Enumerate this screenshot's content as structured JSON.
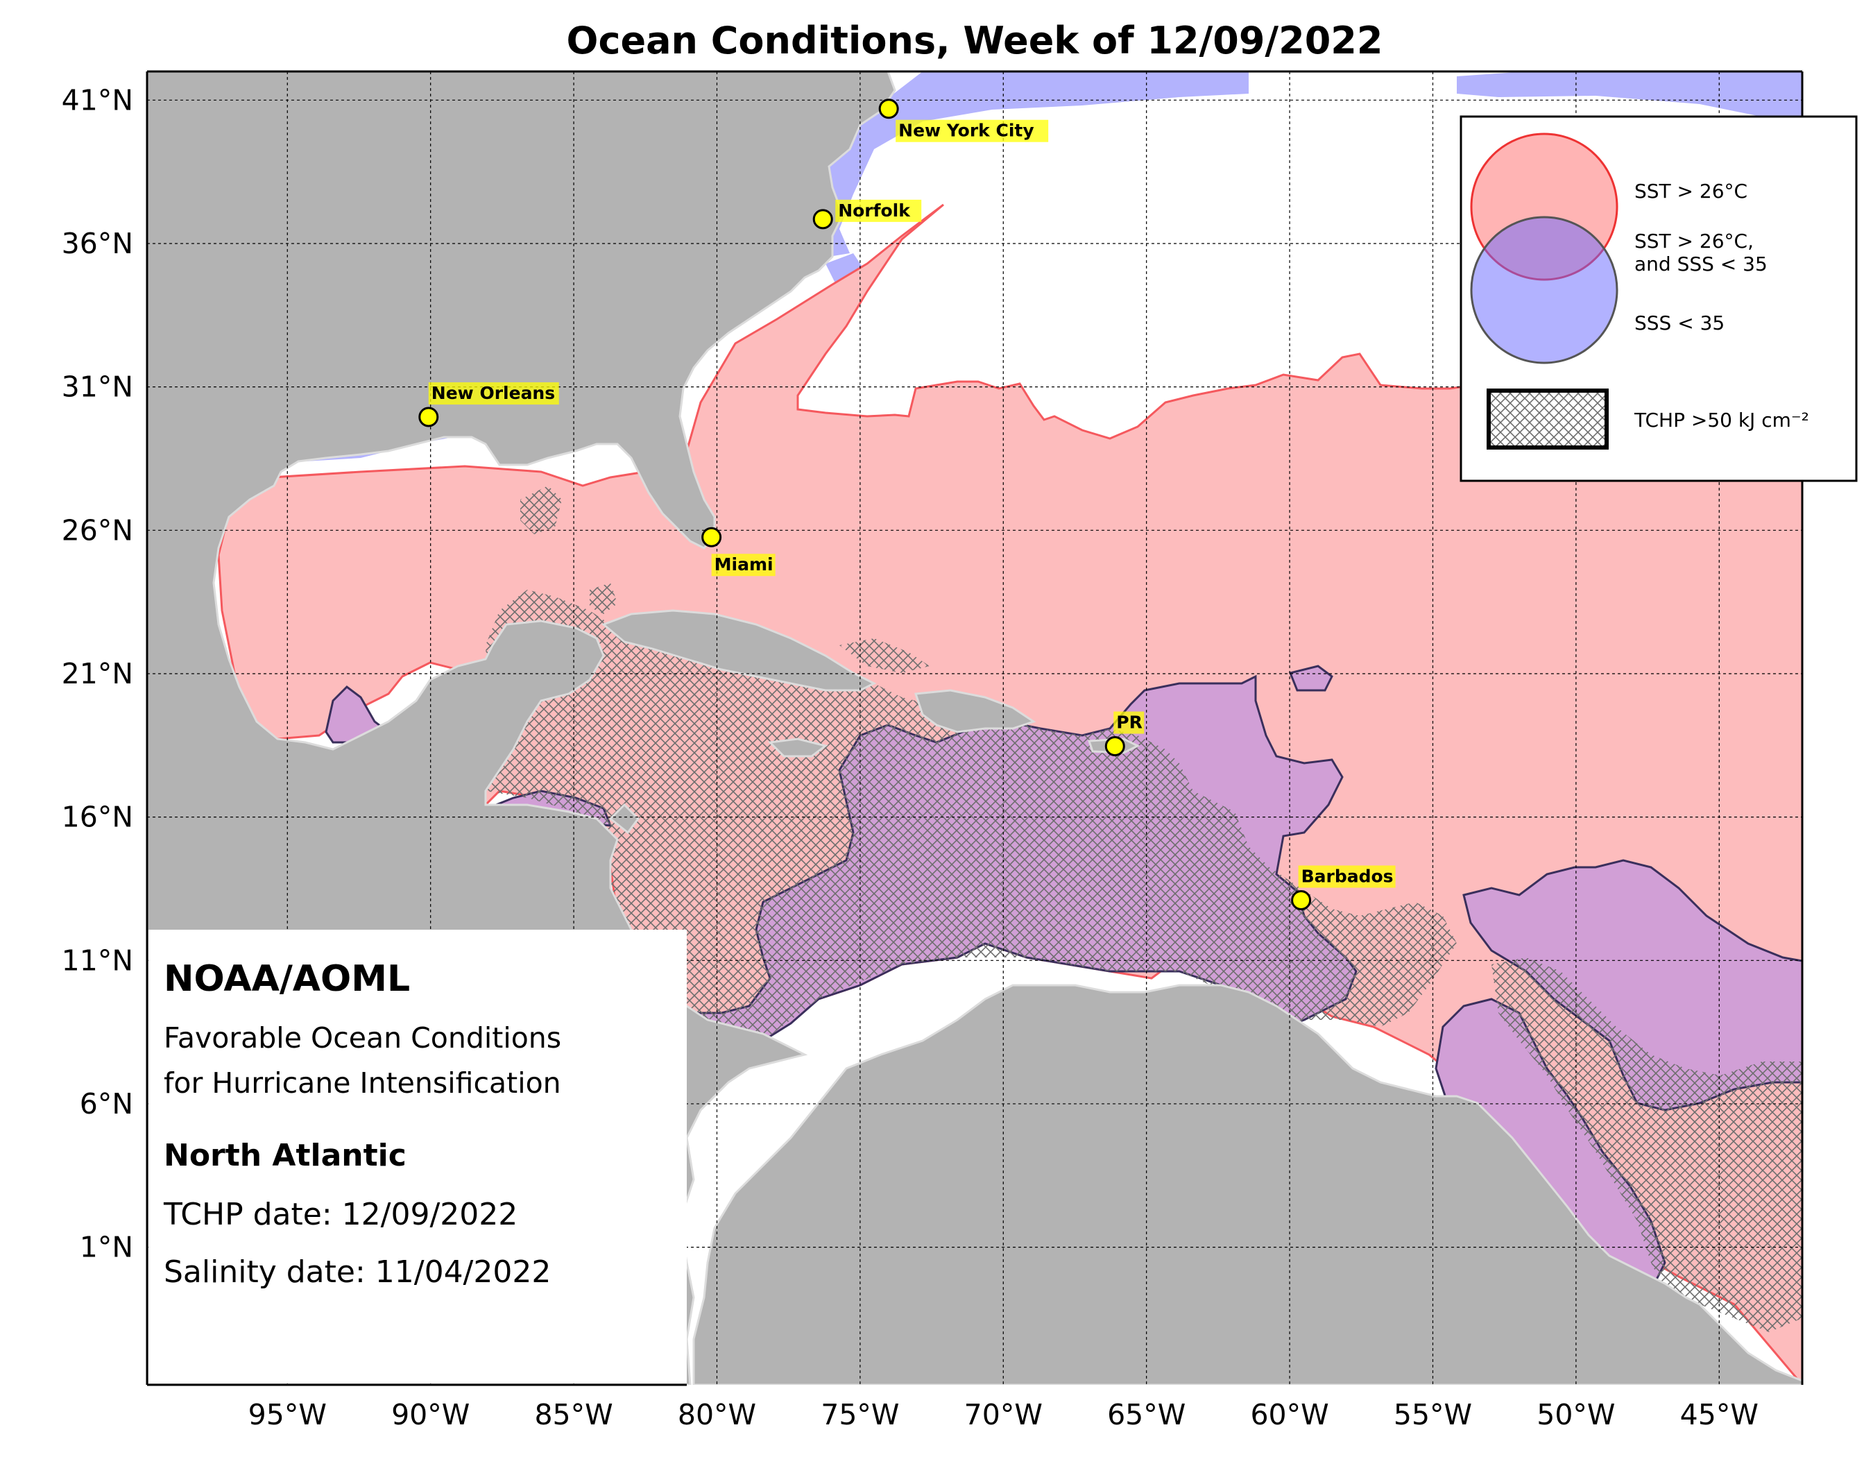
{
  "title": "Ocean Conditions, Week of 12/09/2022",
  "axes": {
    "lat_labels": [
      "41°N",
      "36°N",
      "31°N",
      "26°N",
      "21°N",
      "16°N",
      "11°N",
      "6°N",
      "1°N"
    ],
    "lon_labels": [
      "95°W",
      "90°W",
      "85°W",
      "80°W",
      "75°W",
      "70°W",
      "65°W",
      "60°W",
      "55°W",
      "50°W",
      "45°W"
    ]
  },
  "cities": [
    {
      "name": "New York City",
      "lat": 40.7,
      "lon": -74.0
    },
    {
      "name": "Norfolk",
      "lat": 36.85,
      "lon": -76.3
    },
    {
      "name": "New Orleans",
      "lat": 29.95,
      "lon": -90.07
    },
    {
      "name": "Miami",
      "lat": 25.76,
      "lon": -80.19
    },
    {
      "name": "PR",
      "lat": 18.47,
      "lon": -66.1
    },
    {
      "name": "Barbados",
      "lat": 13.1,
      "lon": -59.6
    }
  ],
  "legend": {
    "sst": "SST > 26°C",
    "both_line1": "SST > 26°C,",
    "both_line2": "and SSS < 35",
    "sss": "SSS < 35",
    "tchp": "TCHP >50 kJ cm⁻²"
  },
  "info": {
    "org": "NOAA/AOML",
    "desc_line1": "Favorable Ocean Conditions",
    "desc_line2": "for Hurricane Intensification",
    "region": "North Atlantic",
    "tchp_date": "TCHP date: 12/09/2022",
    "salinity_date": "Salinity date: 11/04/2022"
  },
  "colors": {
    "land": "#b3b3b3",
    "sst": "#fdbcbd",
    "sst_edge": "#f5595e",
    "both": "#d19fd6",
    "both_edge": "#3a2f5c",
    "sss": "#b3b3fd",
    "city_marker": "#ffff00"
  }
}
